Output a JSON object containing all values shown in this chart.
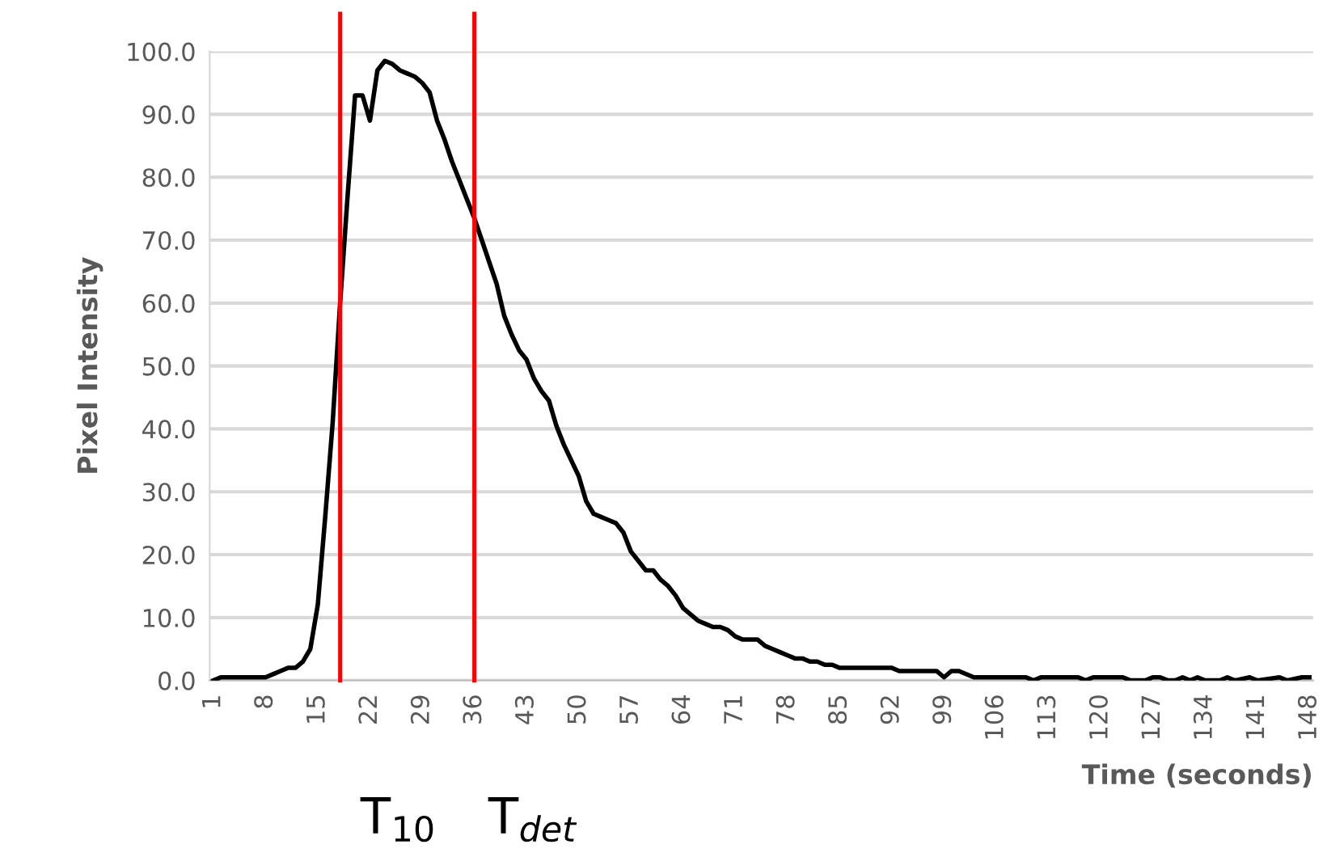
{
  "chart_data": {
    "type": "line",
    "xlabel": "Time (seconds)",
    "ylabel": "Pixel Intensity",
    "x": [
      1,
      2,
      8,
      9,
      10,
      11,
      12,
      13,
      14,
      15,
      16,
      17,
      18,
      19,
      20,
      21,
      22,
      23,
      24,
      25,
      26,
      27,
      28,
      29,
      30,
      31,
      32,
      33,
      34,
      35,
      36,
      37,
      38,
      39,
      40,
      41,
      42,
      43,
      44,
      45,
      46,
      47,
      48,
      49,
      50,
      51,
      52,
      53,
      54,
      55,
      56,
      57,
      58,
      59,
      60,
      61,
      62,
      63,
      64,
      65,
      66,
      67,
      68,
      69,
      70,
      71,
      72,
      73,
      74,
      75,
      76,
      77,
      78,
      79,
      80,
      81,
      82,
      83,
      84,
      85,
      86,
      92,
      93,
      98,
      99,
      100,
      101,
      103,
      110,
      111,
      112,
      117,
      118,
      119,
      123,
      124,
      126,
      127,
      128,
      129,
      130,
      131,
      132,
      133,
      134,
      136,
      137,
      138,
      140,
      141,
      144,
      145,
      147,
      148
    ],
    "series": [
      {
        "color": "#000000",
        "values": [
          0,
          0.5,
          0.5,
          1,
          1.5,
          2,
          2,
          3,
          5,
          12,
          26,
          41,
          60,
          77,
          93,
          93,
          89,
          97,
          98.5,
          98,
          97,
          96.5,
          96,
          95,
          93.5,
          89,
          86,
          82.5,
          79.5,
          76.5,
          73.5,
          70,
          66.5,
          63,
          58,
          55,
          52.5,
          51,
          48,
          46,
          44.5,
          40.5,
          37.5,
          35,
          32.5,
          28.5,
          26.5,
          26,
          25.5,
          25,
          23.5,
          20.5,
          19,
          17.5,
          17.5,
          16,
          15,
          13.5,
          11.5,
          10.5,
          9.5,
          9,
          8.5,
          8.5,
          8,
          7,
          6.5,
          6.5,
          6.5,
          5.5,
          5,
          4.5,
          4,
          3.5,
          3.5,
          3,
          3,
          2.5,
          2.5,
          2,
          2,
          2,
          1.5,
          1.5,
          0.5,
          1.5,
          1.5,
          0.5,
          0.5,
          0,
          0.5,
          0.5,
          0,
          0.5,
          0.5,
          0,
          0,
          0.5,
          0.5,
          0,
          0,
          0.5,
          0,
          0.5,
          0,
          0,
          0.5,
          0,
          0.5,
          0,
          0.5,
          0,
          0.5,
          0.5
        ]
      }
    ],
    "xlim": [
      0.5,
      148.5
    ],
    "xticks": [
      1,
      8,
      15,
      22,
      29,
      36,
      43,
      50,
      57,
      64,
      71,
      78,
      85,
      92,
      99,
      106,
      113,
      120,
      127,
      134,
      141,
      148
    ],
    "ylim": [
      0,
      100
    ],
    "yticks": [
      {
        "value": 0,
        "label": "0.0"
      },
      {
        "value": 10,
        "label": "10.0"
      },
      {
        "value": 20,
        "label": "20.0"
      },
      {
        "value": 30,
        "label": "30.0"
      },
      {
        "value": 40,
        "label": "40.0"
      },
      {
        "value": 50,
        "label": "50.0"
      },
      {
        "value": 60,
        "label": "60.0"
      },
      {
        "value": 70,
        "label": "70.0"
      },
      {
        "value": 80,
        "label": "80.0"
      },
      {
        "value": 90,
        "label": "90.0"
      },
      {
        "value": 100,
        "label": "100.0"
      }
    ],
    "ref_lines": [
      {
        "axis": "x",
        "value": 18,
        "label": "T$_{10}$",
        "color": "#ff0000"
      },
      {
        "axis": "x",
        "value": 36,
        "label": "T$_{det}$",
        "color": "#ff0000"
      }
    ],
    "grid": "y",
    "marker": "none",
    "line_style": "solid",
    "legend": false
  }
}
